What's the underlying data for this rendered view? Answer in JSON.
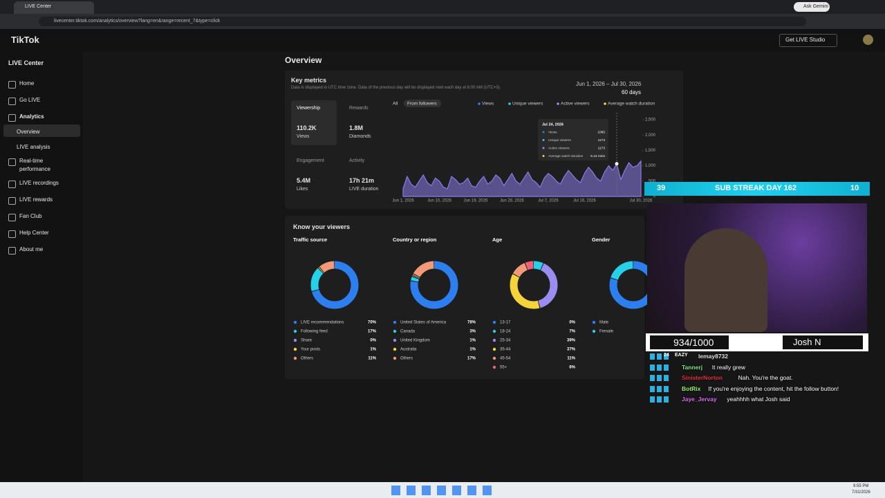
{
  "browser": {
    "tab_title": "LIVE Center",
    "url": "livecenter.tiktok.com/analytics/overview?lang=en&range=recent_7&type=click",
    "gemini": "Ask Gemini"
  },
  "header": {
    "logo": "TikTok",
    "studio_button": "Get LIVE Studio"
  },
  "sidebar": {
    "title": "LIVE Center",
    "items": [
      "Home",
      "Go LIVE",
      "Analytics",
      "Overview",
      "LIVE analysis",
      "Real-time performance",
      "LIVE recordings",
      "LIVE rewards",
      "Fan Club",
      "Help Center",
      "About me"
    ]
  },
  "overview": {
    "title": "Overview",
    "key_metrics": {
      "title": "Key metrics",
      "note": "Data is displayed in UTC time zone. Data of the previous day will be displayed next each day at 6:00 AM (UTC+0).",
      "date_range": "Jun 1, 2026 – Jul 30, 2026",
      "days": "60 days",
      "metrics": [
        {
          "label": "Viewership",
          "value": "110.2K",
          "unit": "Views"
        },
        {
          "label": "Rewards",
          "value": "1.8M",
          "unit": "Diamonds"
        },
        {
          "label": "Engagement",
          "value": "5.4M",
          "unit": "Likes"
        },
        {
          "label": "Activity",
          "value": "17h 21m",
          "unit": "LIVE duration"
        }
      ],
      "filters": [
        "All",
        "From followers"
      ],
      "legend": [
        {
          "name": "Views",
          "color": "#2d7ff0"
        },
        {
          "name": "Unique viewers",
          "color": "#25d0e8"
        },
        {
          "name": "Active viewers",
          "color": "#9b8cf0"
        },
        {
          "name": "Average watch duration",
          "color": "#f5d33a"
        }
      ],
      "chart": {
        "type": "area",
        "color": "#8a7ce8",
        "categories": [
          "Jun 1, 2026",
          null,
          null,
          null,
          null,
          null,
          null,
          null,
          null,
          "Jun 10, 2026",
          null,
          null,
          null,
          null,
          null,
          null,
          null,
          null,
          "Jun 19, 2026",
          null,
          null,
          null,
          null,
          null,
          null,
          null,
          null,
          "Jun 28, 2026",
          null,
          null,
          null,
          null,
          null,
          null,
          null,
          null,
          "Jul 7, 2026",
          null,
          null,
          null,
          null,
          null,
          null,
          null,
          null,
          "Jul 16, 2026",
          null,
          null,
          null,
          null,
          null,
          null,
          null,
          null,
          null,
          null,
          null,
          null,
          null,
          "Jul 30, 2026"
        ],
        "values": [
          250,
          650,
          400,
          300,
          500,
          700,
          450,
          350,
          600,
          500,
          300,
          250,
          650,
          550,
          400,
          450,
          600,
          350,
          300,
          500,
          650,
          400,
          500,
          700,
          600,
          350,
          550,
          750,
          500,
          400,
          600,
          800,
          550,
          450,
          300,
          600,
          750,
          650,
          500,
          400,
          650,
          850,
          700,
          550,
          450,
          750,
          950,
          800,
          600,
          500,
          800,
          1000,
          850,
          1065,
          550,
          850,
          1100,
          950,
          1000,
          1150
        ],
        "ylim": [
          0,
          2500
        ],
        "yticks": [
          0,
          500,
          {
            "value": 1000,
            "label": "1,000"
          },
          {
            "value": 1500,
            "label": "1,500"
          },
          {
            "value": 2000,
            "label": "2,000"
          },
          {
            "value": 2500,
            "label": "2,500"
          }
        ]
      },
      "tooltip": {
        "date": "Jul 24, 2026",
        "rows": [
          {
            "name": "Views",
            "value": 1065
          },
          {
            "name": "Unique viewers",
            "value": 1173
          },
          {
            "name": "Active viewers",
            "value": 1173
          },
          {
            "name": "Average watch duration",
            "value": "5.12 mins"
          }
        ]
      }
    }
  },
  "viewers": {
    "title": "Know your viewers",
    "panels": [
      {
        "title": "Traffic source",
        "items": [
          {
            "name": "LIVE recommendations",
            "value": 70,
            "value_label": "70%",
            "color": "#2d7ff0"
          },
          {
            "name": "Following feed",
            "value": 17,
            "value_label": "17%",
            "color": "#25d0e8"
          },
          {
            "name": "Share",
            "value": 0,
            "value_label": "0%",
            "color": "#9b8cf0"
          },
          {
            "name": "Your posts",
            "value": 1,
            "value_label": "1%",
            "color": "#f5d33a"
          },
          {
            "name": "Others",
            "value": 11,
            "value_label": "11%",
            "color": "#f09a7a"
          }
        ]
      },
      {
        "title": "Country or region",
        "items": [
          {
            "name": "United States of America",
            "value": 78,
            "value_label": "78%",
            "color": "#2d7ff0"
          },
          {
            "name": "Canada",
            "value": 3,
            "value_label": "3%",
            "color": "#25d0e8"
          },
          {
            "name": "United Kingdom",
            "value": 1,
            "value_label": "1%",
            "color": "#9b8cf0"
          },
          {
            "name": "Australia",
            "value": 1,
            "value_label": "1%",
            "color": "#f5d33a"
          },
          {
            "name": "Others",
            "value": 17,
            "value_label": "17%",
            "color": "#f09a7a"
          }
        ]
      },
      {
        "title": "Age",
        "items": [
          {
            "name": "13-17",
            "value": 0,
            "value_label": "0%",
            "color": "#2d7ff0"
          },
          {
            "name": "18-24",
            "value": 7,
            "value_label": "7%",
            "color": "#25d0e8"
          },
          {
            "name": "25-34",
            "value": 39,
            "value_label": "39%",
            "color": "#9b8cf0"
          },
          {
            "name": "35-44",
            "value": 37,
            "value_label": "37%",
            "color": "#f5d33a"
          },
          {
            "name": "45-54",
            "value": 11,
            "value_label": "11%",
            "color": "#f09a7a"
          },
          {
            "name": "55+",
            "value": 6,
            "value_label": "6%",
            "color": "#f0607a"
          }
        ]
      },
      {
        "title": "Gender",
        "items": [
          {
            "name": "Male",
            "value": 80,
            "color": "#2d7ff0"
          },
          {
            "name": "Female",
            "value": 20,
            "color": "#25d0e8"
          }
        ]
      }
    ]
  },
  "stream": {
    "left_count": "39",
    "banner": "SUB STREAK DAY 162",
    "right_count": "10",
    "goal": "934/1000",
    "name": "Josh N"
  },
  "chat": [
    {
      "badge": "24",
      "tag": "EAZY",
      "user": "lemay8732",
      "color": "#e0e0e0"
    },
    {
      "user": "Tannerj",
      "message": "It really grew",
      "color": "#7ee07e"
    },
    {
      "user": "SinisterNorton",
      "message": "Nah. You're the goat.",
      "color": "#e0303a"
    },
    {
      "user": "BotRix",
      "message": "If you're enjoying the content, hit the follow button!",
      "color": "#9cf06a"
    },
    {
      "user": "Jaye_Jervay",
      "message": "yeahhhh what Josh said",
      "color": "#d86cf0"
    }
  ],
  "taskbar": {
    "time": "9:55 PM",
    "date": "7/31/2026"
  }
}
